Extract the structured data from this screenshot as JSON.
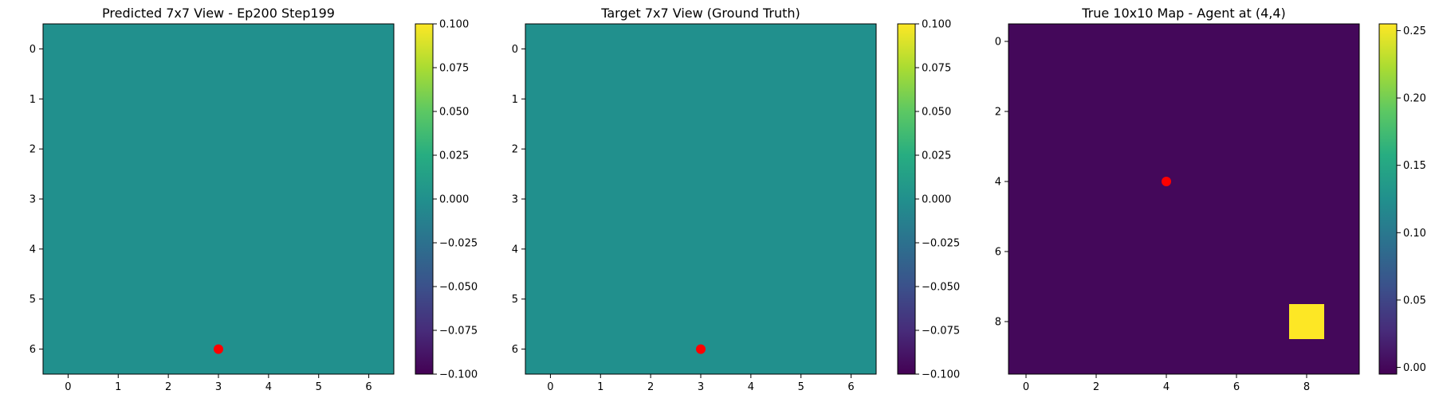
{
  "chart_data": [
    {
      "type": "heatmap",
      "title": "Predicted 7x7 View - Ep200 Step199",
      "rows": 7,
      "cols": 7,
      "values": [
        [
          0,
          0,
          0,
          0,
          0,
          0,
          0
        ],
        [
          0,
          0,
          0,
          0,
          0,
          0,
          0
        ],
        [
          0,
          0,
          0,
          0,
          0,
          0,
          0
        ],
        [
          0,
          0,
          0,
          0,
          0,
          0,
          0
        ],
        [
          0,
          0,
          0,
          0,
          0,
          0,
          0
        ],
        [
          0,
          0,
          0,
          0,
          0,
          0,
          0
        ],
        [
          0,
          0,
          0,
          0,
          0,
          0,
          0
        ]
      ],
      "vmin": -0.1,
      "vmax": 0.1,
      "colormap": "viridis",
      "xticks": [
        0,
        1,
        2,
        3,
        4,
        5,
        6
      ],
      "yticks": [
        0,
        1,
        2,
        3,
        4,
        5,
        6
      ],
      "marker": {
        "x": 3,
        "y": 6,
        "color": "#ff0000"
      },
      "colorbar_ticks": [
        "0.100",
        "0.075",
        "0.050",
        "0.025",
        "0.000",
        "−0.025",
        "−0.050",
        "−0.075",
        "−0.100"
      ],
      "colorbar_tick_values": [
        0.1,
        0.075,
        0.05,
        0.025,
        0.0,
        -0.025,
        -0.05,
        -0.075,
        -0.1
      ]
    },
    {
      "type": "heatmap",
      "title": "Target 7x7 View (Ground Truth)",
      "rows": 7,
      "cols": 7,
      "values": [
        [
          0,
          0,
          0,
          0,
          0,
          0,
          0
        ],
        [
          0,
          0,
          0,
          0,
          0,
          0,
          0
        ],
        [
          0,
          0,
          0,
          0,
          0,
          0,
          0
        ],
        [
          0,
          0,
          0,
          0,
          0,
          0,
          0
        ],
        [
          0,
          0,
          0,
          0,
          0,
          0,
          0
        ],
        [
          0,
          0,
          0,
          0,
          0,
          0,
          0
        ],
        [
          0,
          0,
          0,
          0,
          0,
          0,
          0
        ]
      ],
      "vmin": -0.1,
      "vmax": 0.1,
      "colormap": "viridis",
      "xticks": [
        0,
        1,
        2,
        3,
        4,
        5,
        6
      ],
      "yticks": [
        0,
        1,
        2,
        3,
        4,
        5,
        6
      ],
      "marker": {
        "x": 3,
        "y": 6,
        "color": "#ff0000"
      },
      "colorbar_ticks": [
        "0.100",
        "0.075",
        "0.050",
        "0.025",
        "0.000",
        "−0.025",
        "−0.050",
        "−0.075",
        "−0.100"
      ],
      "colorbar_tick_values": [
        0.1,
        0.075,
        0.05,
        0.025,
        0.0,
        -0.025,
        -0.05,
        -0.075,
        -0.1
      ]
    },
    {
      "type": "heatmap",
      "title": "True 10x10 Map - Agent at (4,4)",
      "rows": 10,
      "cols": 10,
      "values": [
        [
          0,
          0,
          0,
          0,
          0,
          0,
          0,
          0,
          0,
          0
        ],
        [
          0,
          0,
          0,
          0,
          0,
          0,
          0,
          0,
          0,
          0
        ],
        [
          0,
          0,
          0,
          0,
          0,
          0,
          0,
          0,
          0,
          0
        ],
        [
          0,
          0,
          0,
          0,
          0,
          0,
          0,
          0,
          0,
          0
        ],
        [
          0,
          0,
          0,
          0,
          0,
          0,
          0,
          0,
          0,
          0
        ],
        [
          0,
          0,
          0,
          0,
          0,
          0,
          0,
          0,
          0,
          0
        ],
        [
          0,
          0,
          0,
          0,
          0,
          0,
          0,
          0,
          0,
          0
        ],
        [
          0,
          0,
          0,
          0,
          0,
          0,
          0,
          0,
          0,
          0
        ],
        [
          0,
          0,
          0,
          0,
          0,
          0,
          0,
          0,
          0.255,
          0
        ],
        [
          0,
          0,
          0,
          0,
          0,
          0,
          0,
          0,
          0,
          0
        ]
      ],
      "vmin": -0.005,
      "vmax": 0.255,
      "colormap": "viridis",
      "xticks": [
        0,
        2,
        4,
        6,
        8
      ],
      "yticks": [
        0,
        2,
        4,
        6,
        8
      ],
      "marker": {
        "x": 4,
        "y": 4,
        "color": "#ff0000"
      },
      "colorbar_ticks": [
        "0.25",
        "0.20",
        "0.15",
        "0.10",
        "0.05",
        "0.00"
      ],
      "colorbar_tick_values": [
        0.25,
        0.2,
        0.15,
        0.1,
        0.05,
        0.0
      ]
    }
  ]
}
